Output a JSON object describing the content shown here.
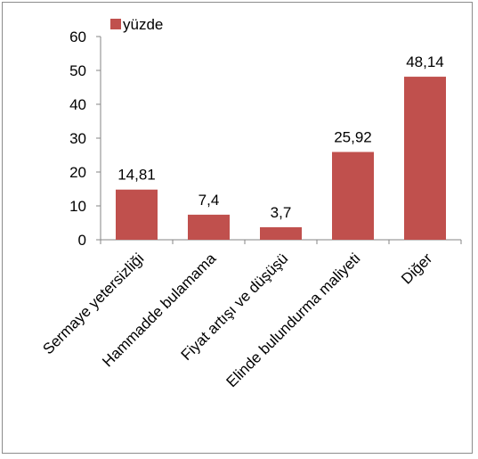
{
  "chart_data": {
    "type": "bar",
    "title": "",
    "xlabel": "",
    "ylabel": "",
    "categories": [
      "Sermaye yetersizliği",
      "Hammadde bulamama",
      "Fiyat artışı ve düşüşü",
      "Elinde bulundurma maliyeti",
      "Diğer"
    ],
    "series": [
      {
        "name": "yüzde",
        "values": [
          14.81,
          7.4,
          3.7,
          25.92,
          48.14
        ],
        "color": "#c0504d"
      }
    ],
    "data_labels": [
      "14,81",
      "7,4",
      "3,7",
      "25,92",
      "48,14"
    ],
    "ylim": [
      0,
      60
    ],
    "yticks": [
      0,
      10,
      20,
      30,
      40,
      50,
      60
    ],
    "ytick_labels": [
      "0",
      "10",
      "20",
      "30",
      "40",
      "50",
      "60"
    ],
    "grid": false,
    "legend": {
      "position": "top-left",
      "label": "yüzde"
    }
  }
}
